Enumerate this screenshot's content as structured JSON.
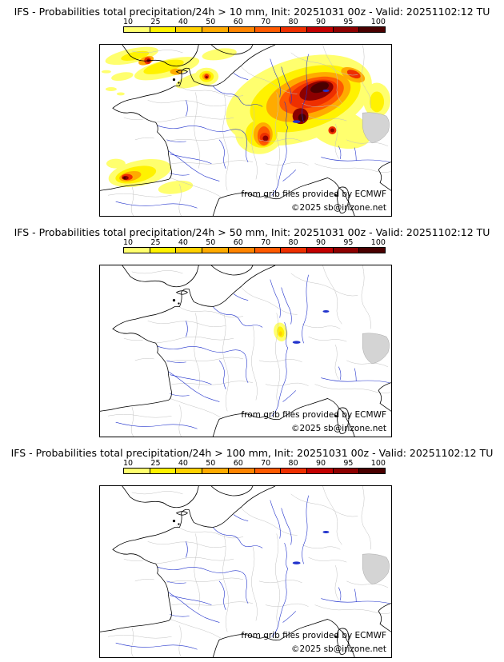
{
  "page": {
    "background": "#ffffff"
  },
  "panels": [
    {
      "id": "prob-gt-10mm",
      "title": "IFS - Probabilities total precipitation/24h > 10 mm, Init: 20251031 00z - Valid: 20251102:12 TU"
    },
    {
      "id": "prob-gt-50mm",
      "title": "IFS - Probabilities total precipitation/24h > 50 mm, Init: 20251031 00z - Valid: 20251102:12 TU"
    },
    {
      "id": "prob-gt-100mm",
      "title": "IFS - Probabilities total precipitation/24h > 100 mm, Init: 20251031 00z - Valid: 20251102:12 TU"
    }
  ],
  "colorbar": {
    "ticks": [
      "10",
      "25",
      "40",
      "50",
      "60",
      "70",
      "80",
      "90",
      "95",
      "100"
    ],
    "colors": [
      "#ffff6e",
      "#fff200",
      "#ffd100",
      "#ffab00",
      "#ff8400",
      "#ff5a00",
      "#ee2f00",
      "#c30000",
      "#8d0000",
      "#4a0000"
    ]
  },
  "attribution": {
    "line1": "from grib files provided by ECMWF",
    "line2": "©2025 sb@irizone.net"
  },
  "map_style": {
    "coastline": "#000000",
    "rivers": "#2233cc",
    "admin_borders": "#c2c2c2",
    "relief_patch": "#d4d4d4"
  }
}
